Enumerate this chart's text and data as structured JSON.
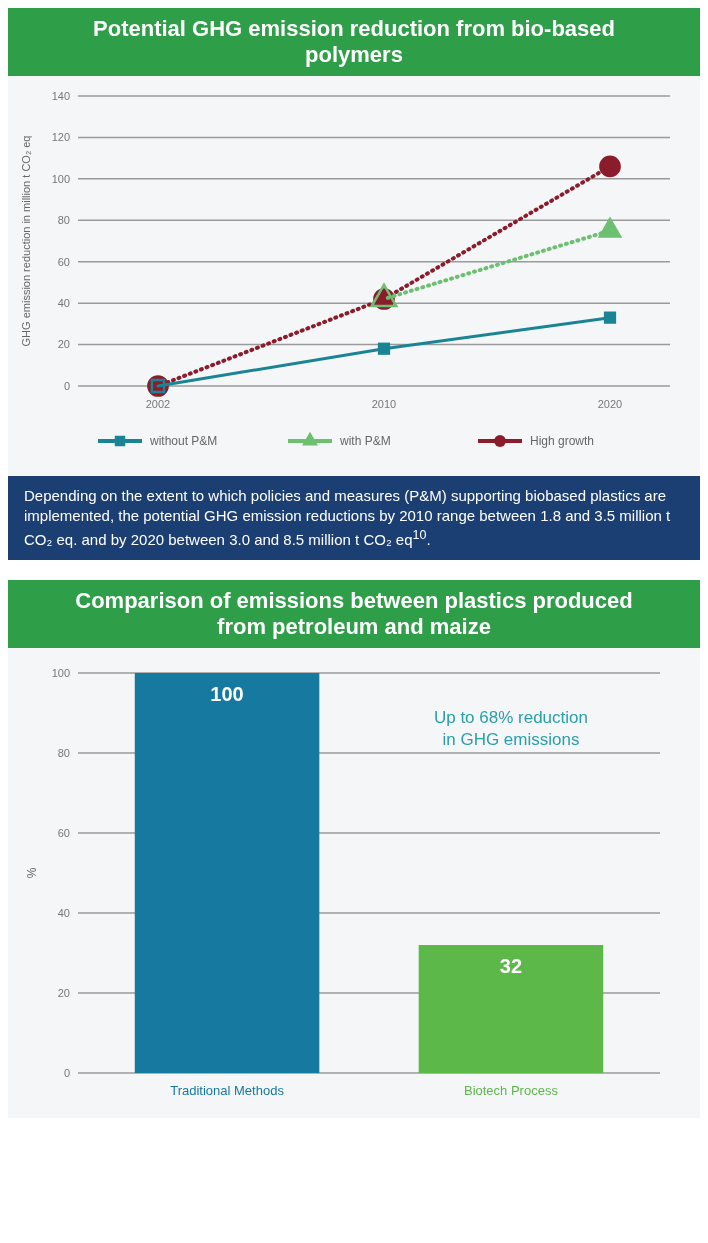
{
  "chart_data": [
    {
      "type": "line",
      "title": "Potential GHG emission reduction from bio-based polymers",
      "ylabel": "GHG emission reduction in million t CO₂ eq",
      "categories": [
        "2002",
        "2010",
        "2020"
      ],
      "ylim": [
        0,
        140
      ],
      "yticks": [
        0,
        20,
        40,
        60,
        80,
        100,
        120,
        140
      ],
      "grid": "y",
      "legend": "bottom",
      "series": [
        {
          "name": "without P&M",
          "color": "#1a8494",
          "values": [
            0,
            18,
            33
          ],
          "marker": "square",
          "line_style": "solid"
        },
        {
          "name": "with P&M",
          "color": "#6cc070",
          "values": [
            null,
            42,
            75
          ],
          "marker": "triangle",
          "line_style": "dotted"
        },
        {
          "name": "High growth",
          "color": "#8b1c2c",
          "values": [
            0,
            42,
            106
          ],
          "marker": "circle",
          "line_style": "dotted"
        }
      ],
      "annotations": [
        "Depending on the extent to which policies and measures (P&M) supporting biobased plastics are implemented, the potential GHG emission reductions by 2010 range between 1.8 and 3.5 million t CO₂ eq. and by 2020 between 3.0 and 8.5 million t CO₂ eq$^{10}$."
      ]
    },
    {
      "type": "bar",
      "title": "Comparison of emissions between plastics produced from petroleum and maize",
      "ylabel": "%",
      "categories": [
        "Traditional Methods",
        "Biotech Process"
      ],
      "values": [
        100,
        32
      ],
      "colors": [
        "#1679a0",
        "#5cb848"
      ],
      "ylim": [
        0,
        100
      ],
      "yticks": [
        0,
        20,
        40,
        60,
        80,
        100
      ],
      "grid": "y",
      "data_labels": true,
      "annotations": [
        "Up to 68% reduction in GHG emissions"
      ]
    }
  ]
}
